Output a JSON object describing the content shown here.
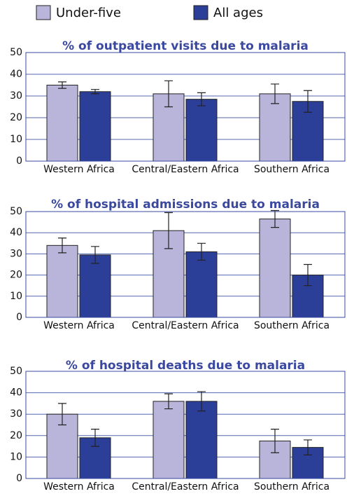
{
  "chart_data": [
    {
      "type": "bar",
      "title": "% of outpatient visits due to malaria",
      "categories": [
        "Western Africa",
        "Central/Eastern Africa",
        "Southern Africa"
      ],
      "series": [
        {
          "name": "Under-five",
          "color": "#b9b5da",
          "values": [
            35,
            31,
            31
          ],
          "errors": [
            1.5,
            6,
            4.5
          ]
        },
        {
          "name": "All ages",
          "color": "#2c3f98",
          "values": [
            32,
            28.5,
            27.5
          ],
          "errors": [
            1,
            3,
            5
          ]
        }
      ],
      "ylim": [
        0,
        50
      ],
      "yticks": [
        0,
        10,
        20,
        30,
        40,
        50
      ],
      "grid": true
    },
    {
      "type": "bar",
      "title": "% of hospital admissions due to malaria",
      "categories": [
        "Western Africa",
        "Central/Eastern Africa",
        "Southern Africa"
      ],
      "series": [
        {
          "color": "#b9b5da",
          "values": [
            34,
            41,
            46.5
          ],
          "errors": [
            3.5,
            8.5,
            4
          ]
        },
        {
          "color": "#2c3f98",
          "values": [
            29.5,
            31,
            20
          ],
          "errors": [
            4,
            4,
            5
          ]
        }
      ],
      "ylim": [
        0,
        50
      ],
      "yticks": [
        0,
        10,
        20,
        30,
        40,
        50
      ],
      "grid": true
    },
    {
      "type": "bar",
      "title": "% of hospital deaths due to malaria",
      "categories": [
        "Western Africa",
        "Central/Eastern Africa",
        "Southern Africa"
      ],
      "series": [
        {
          "color": "#b9b5da",
          "values": [
            30,
            36,
            17.5
          ],
          "errors": [
            5,
            3.5,
            5.5
          ]
        },
        {
          "color": "#2c3f98",
          "values": [
            19,
            36,
            14.5
          ],
          "errors": [
            4,
            4.5,
            3.5
          ]
        }
      ],
      "ylim": [
        0,
        50
      ],
      "yticks": [
        0,
        10,
        20,
        30,
        40,
        50
      ],
      "grid": true
    }
  ]
}
